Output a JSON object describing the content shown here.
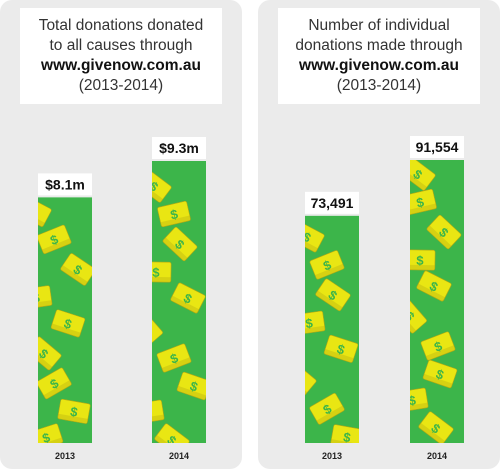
{
  "colors": {
    "panel": "#ebebeb",
    "bar": "#3cb54a",
    "note": "#e9e613",
    "note_dark": "#b5a812",
    "dollar": "#3cb54a"
  },
  "chart_data": [
    {
      "type": "bar",
      "title_lines": [
        "Total donations donated",
        "to all causes through",
        "www.givenow.com.au",
        "(2013-2014)"
      ],
      "categories": [
        "2013",
        "2014"
      ],
      "values": [
        8.1,
        9.3
      ],
      "data_labels": [
        "$8.1m",
        "$9.3m"
      ],
      "unit": "$ million",
      "ylim": [
        0,
        9.3
      ]
    },
    {
      "type": "bar",
      "title_lines": [
        "Number of individual",
        "donations made through",
        "www.givenow.com.au",
        "(2013-2014)"
      ],
      "categories": [
        "2013",
        "2014"
      ],
      "values": [
        73491,
        91554
      ],
      "data_labels": [
        "73,491",
        "91,554"
      ],
      "unit": "donations",
      "ylim": [
        0,
        91554
      ]
    }
  ]
}
